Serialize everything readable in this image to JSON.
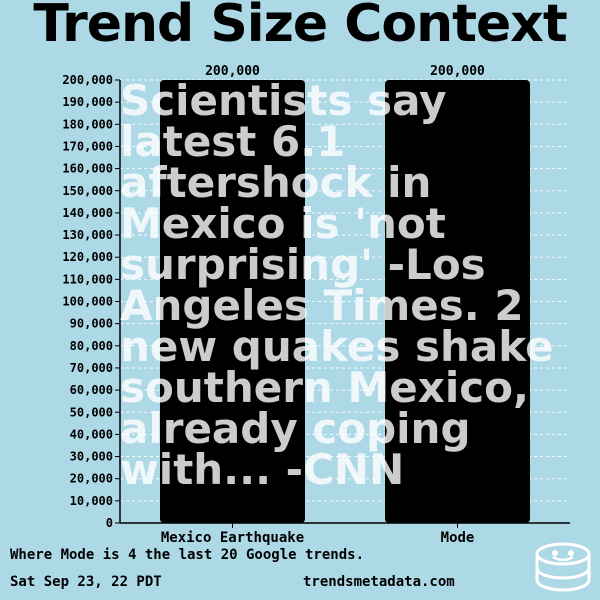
{
  "title": "Trend Size Context",
  "chart_data": {
    "type": "bar",
    "categories": [
      "Mexico Earthquake",
      "Mode"
    ],
    "values": [
      200000,
      200000
    ],
    "value_labels": [
      "200,000",
      "200,000"
    ],
    "ylim": [
      0,
      200000
    ],
    "y_ticks": [
      0,
      10000,
      20000,
      30000,
      40000,
      50000,
      60000,
      70000,
      80000,
      90000,
      100000,
      110000,
      120000,
      130000,
      140000,
      150000,
      160000,
      170000,
      180000,
      190000,
      200000
    ],
    "y_tick_labels": [
      "0",
      "10,000",
      "20,000",
      "30,000",
      "40,000",
      "50,000",
      "60,000",
      "70,000",
      "80,000",
      "90,000",
      "100,000",
      "110,000",
      "120,000",
      "130,000",
      "140,000",
      "150,000",
      "160,000",
      "170,000",
      "180,000",
      "190,000",
      "200,000"
    ],
    "grid": true,
    "bar_color": "#000000",
    "grid_color": "#ffffff"
  },
  "overlay_text": "Scientists say latest 6.1 aftershock in Mexico is 'not surprising' -Los Angeles Times. 2 new quakes shake southern Mexico, already coping with... -CNN",
  "footer": {
    "mode_note": "Where Mode is 4 the last 20 Google trends.",
    "date": "Sat Sep 23, 22 PDT",
    "site": "trendsmetadata.com"
  },
  "logo_icon": "smiley-cylinder-icon",
  "background_color": "#add8e6"
}
